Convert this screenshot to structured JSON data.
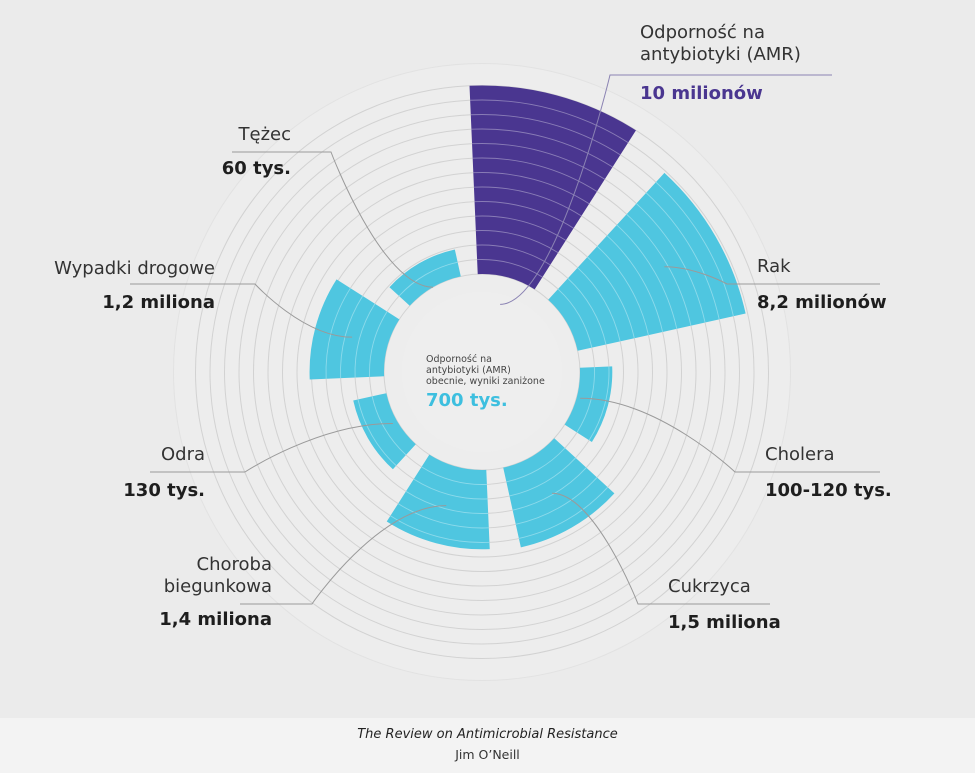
{
  "chart_data": {
    "type": "radial-bar",
    "center": {
      "label_lines": [
        "Odporność na",
        "antybiotyki (AMR)",
        "obecnie, wyniki zaniżone"
      ],
      "value_label": "700 tys.",
      "value": 700000,
      "color": "#3dbfdf"
    },
    "ring_count": 13,
    "categories": [
      {
        "name_lines": [
          "Odporność na",
          "antybiotyki (AMR)"
        ],
        "value_label": "10 milionów",
        "value": 10000000,
        "color": "#4a3690",
        "value_color": "#4a3690"
      },
      {
        "name_lines": [
          "Rak"
        ],
        "value_label": "8,2 milionów",
        "value": 8200000,
        "color": "#4fc6e0",
        "value_color": "#1e1e1e"
      },
      {
        "name_lines": [
          "Cholera"
        ],
        "value_label": "100-120 tys.",
        "value": 110000,
        "color": "#4fc6e0",
        "value_color": "#1e1e1e"
      },
      {
        "name_lines": [
          "Cukrzyca"
        ],
        "value_label": "1,5 miliona",
        "value": 1500000,
        "color": "#4fc6e0",
        "value_color": "#1e1e1e"
      },
      {
        "name_lines": [
          "Choroba",
          "biegunkowa"
        ],
        "value_label": "1,4 miliona",
        "value": 1400000,
        "color": "#4fc6e0",
        "value_color": "#1e1e1e"
      },
      {
        "name_lines": [
          "Odra"
        ],
        "value_label": "130 tys.",
        "value": 130000,
        "color": "#4fc6e0",
        "value_color": "#1e1e1e"
      },
      {
        "name_lines": [
          "Wypadki drogowe"
        ],
        "value_label": "1,2 miliona",
        "value": 1200000,
        "color": "#4fc6e0",
        "value_color": "#1e1e1e"
      },
      {
        "name_lines": [
          "Tężec"
        ],
        "value_label": "60 tys.",
        "value": 60000,
        "color": "#4fc6e0",
        "value_color": "#1e1e1e"
      }
    ]
  },
  "source": {
    "title": "The Review on Antimicrobial Resistance",
    "author": "Jim O’Neill"
  }
}
